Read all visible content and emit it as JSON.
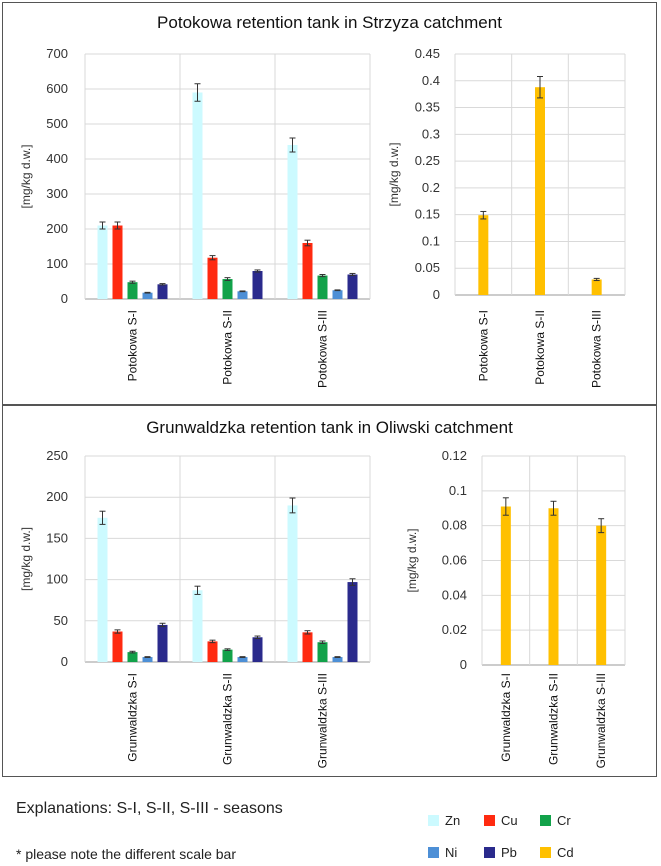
{
  "explanations": "Explanations:  S-I, S-II, S-III - seasons",
  "scale_note": "* please note the different scale bar",
  "legend": [
    {
      "name": "Zn",
      "color": "#ccfaff"
    },
    {
      "name": "Cu",
      "color": "#ff2a10"
    },
    {
      "name": "Cr",
      "color": "#12a24a"
    },
    {
      "name": "Ni",
      "color": "#4d8fd6"
    },
    {
      "name": "Pb",
      "color": "#2a2a8c"
    },
    {
      "name": "Cd",
      "color": "#ffc000"
    }
  ],
  "panels": [
    {
      "title": "Potokowa retention tank in Strzyza catchment"
    },
    {
      "title": "Grunwaldzka retention tank in Oliwski catchment"
    }
  ],
  "chart_data": [
    {
      "type": "bar",
      "panel": "Potokowa retention tank in Strzyza catchment",
      "ylabel": "[mg/kg d.w.]",
      "ylim": [
        0,
        700
      ],
      "yticks": [
        "0",
        "100",
        "200",
        "300",
        "400",
        "500",
        "600",
        "700"
      ],
      "categories": [
        "Potokowa S-I",
        "Potokowa S-II",
        "Potokowa S-III"
      ],
      "series": [
        {
          "name": "Zn",
          "values": [
            210,
            590,
            440
          ],
          "errors": [
            10,
            25,
            20
          ]
        },
        {
          "name": "Cu",
          "values": [
            210,
            118,
            160
          ],
          "errors": [
            10,
            6,
            8
          ]
        },
        {
          "name": "Cr",
          "values": [
            48,
            57,
            67
          ],
          "errors": [
            3,
            4,
            3
          ]
        },
        {
          "name": "Ni",
          "values": [
            18,
            22,
            25
          ],
          "errors": [
            1,
            1,
            1
          ]
        },
        {
          "name": "Pb",
          "values": [
            42,
            80,
            70
          ],
          "errors": [
            2,
            3,
            3
          ]
        }
      ],
      "grid": true
    },
    {
      "type": "bar",
      "panel": "Potokowa retention tank in Strzyza catchment",
      "ylabel": "[mg/kg d.w.]",
      "ylim": [
        0,
        0.45
      ],
      "yticks": [
        "0",
        "0.05",
        "0.1",
        "0.15",
        "0.2",
        "0.25",
        "0.3",
        "0.35",
        "0.4",
        "0.45"
      ],
      "categories": [
        "Potokowa S-I",
        "Potokowa S-II",
        "Potokowa S-III"
      ],
      "series": [
        {
          "name": "Cd",
          "values": [
            0.149,
            0.388,
            0.029
          ],
          "errors": [
            0.007,
            0.02,
            0.002
          ]
        }
      ],
      "grid": true
    },
    {
      "type": "bar",
      "panel": "Grunwaldzka retention tank in Oliwski catchment",
      "ylabel": "[mg/kg d.w.]",
      "ylim": [
        0,
        250
      ],
      "yticks": [
        "0",
        "50",
        "100",
        "150",
        "200",
        "250"
      ],
      "categories": [
        "Grunwaldzka S-I",
        "Grunwaldzka S-II",
        "Grunwaldzka S-III"
      ],
      "series": [
        {
          "name": "Zn",
          "values": [
            175,
            87,
            190
          ],
          "errors": [
            8,
            5,
            9
          ]
        },
        {
          "name": "Cu",
          "values": [
            37,
            25,
            36
          ],
          "errors": [
            2,
            1.5,
            2
          ]
        },
        {
          "name": "Cr",
          "values": [
            12,
            15,
            24
          ],
          "errors": [
            1,
            1,
            1.5
          ]
        },
        {
          "name": "Ni",
          "values": [
            6,
            6,
            6
          ],
          "errors": [
            0.5,
            0.5,
            0.5
          ]
        },
        {
          "name": "Pb",
          "values": [
            45,
            30,
            97
          ],
          "errors": [
            2,
            1.5,
            4
          ]
        }
      ],
      "grid": true
    },
    {
      "type": "bar",
      "panel": "Grunwaldzka retention tank in Oliwski catchment",
      "ylabel": "[mg/kg d.w.]",
      "ylim": [
        0,
        0.12
      ],
      "yticks": [
        "0",
        "0.02",
        "0.04",
        "0.06",
        "0.08",
        "0.1",
        "0.12"
      ],
      "categories": [
        "Grunwaldzka S-I",
        "Grunwaldzka S-II",
        "Grunwaldzka S-III"
      ],
      "series": [
        {
          "name": "Cd",
          "values": [
            0.091,
            0.09,
            0.08
          ],
          "errors": [
            0.005,
            0.004,
            0.004
          ]
        }
      ],
      "grid": true
    }
  ]
}
